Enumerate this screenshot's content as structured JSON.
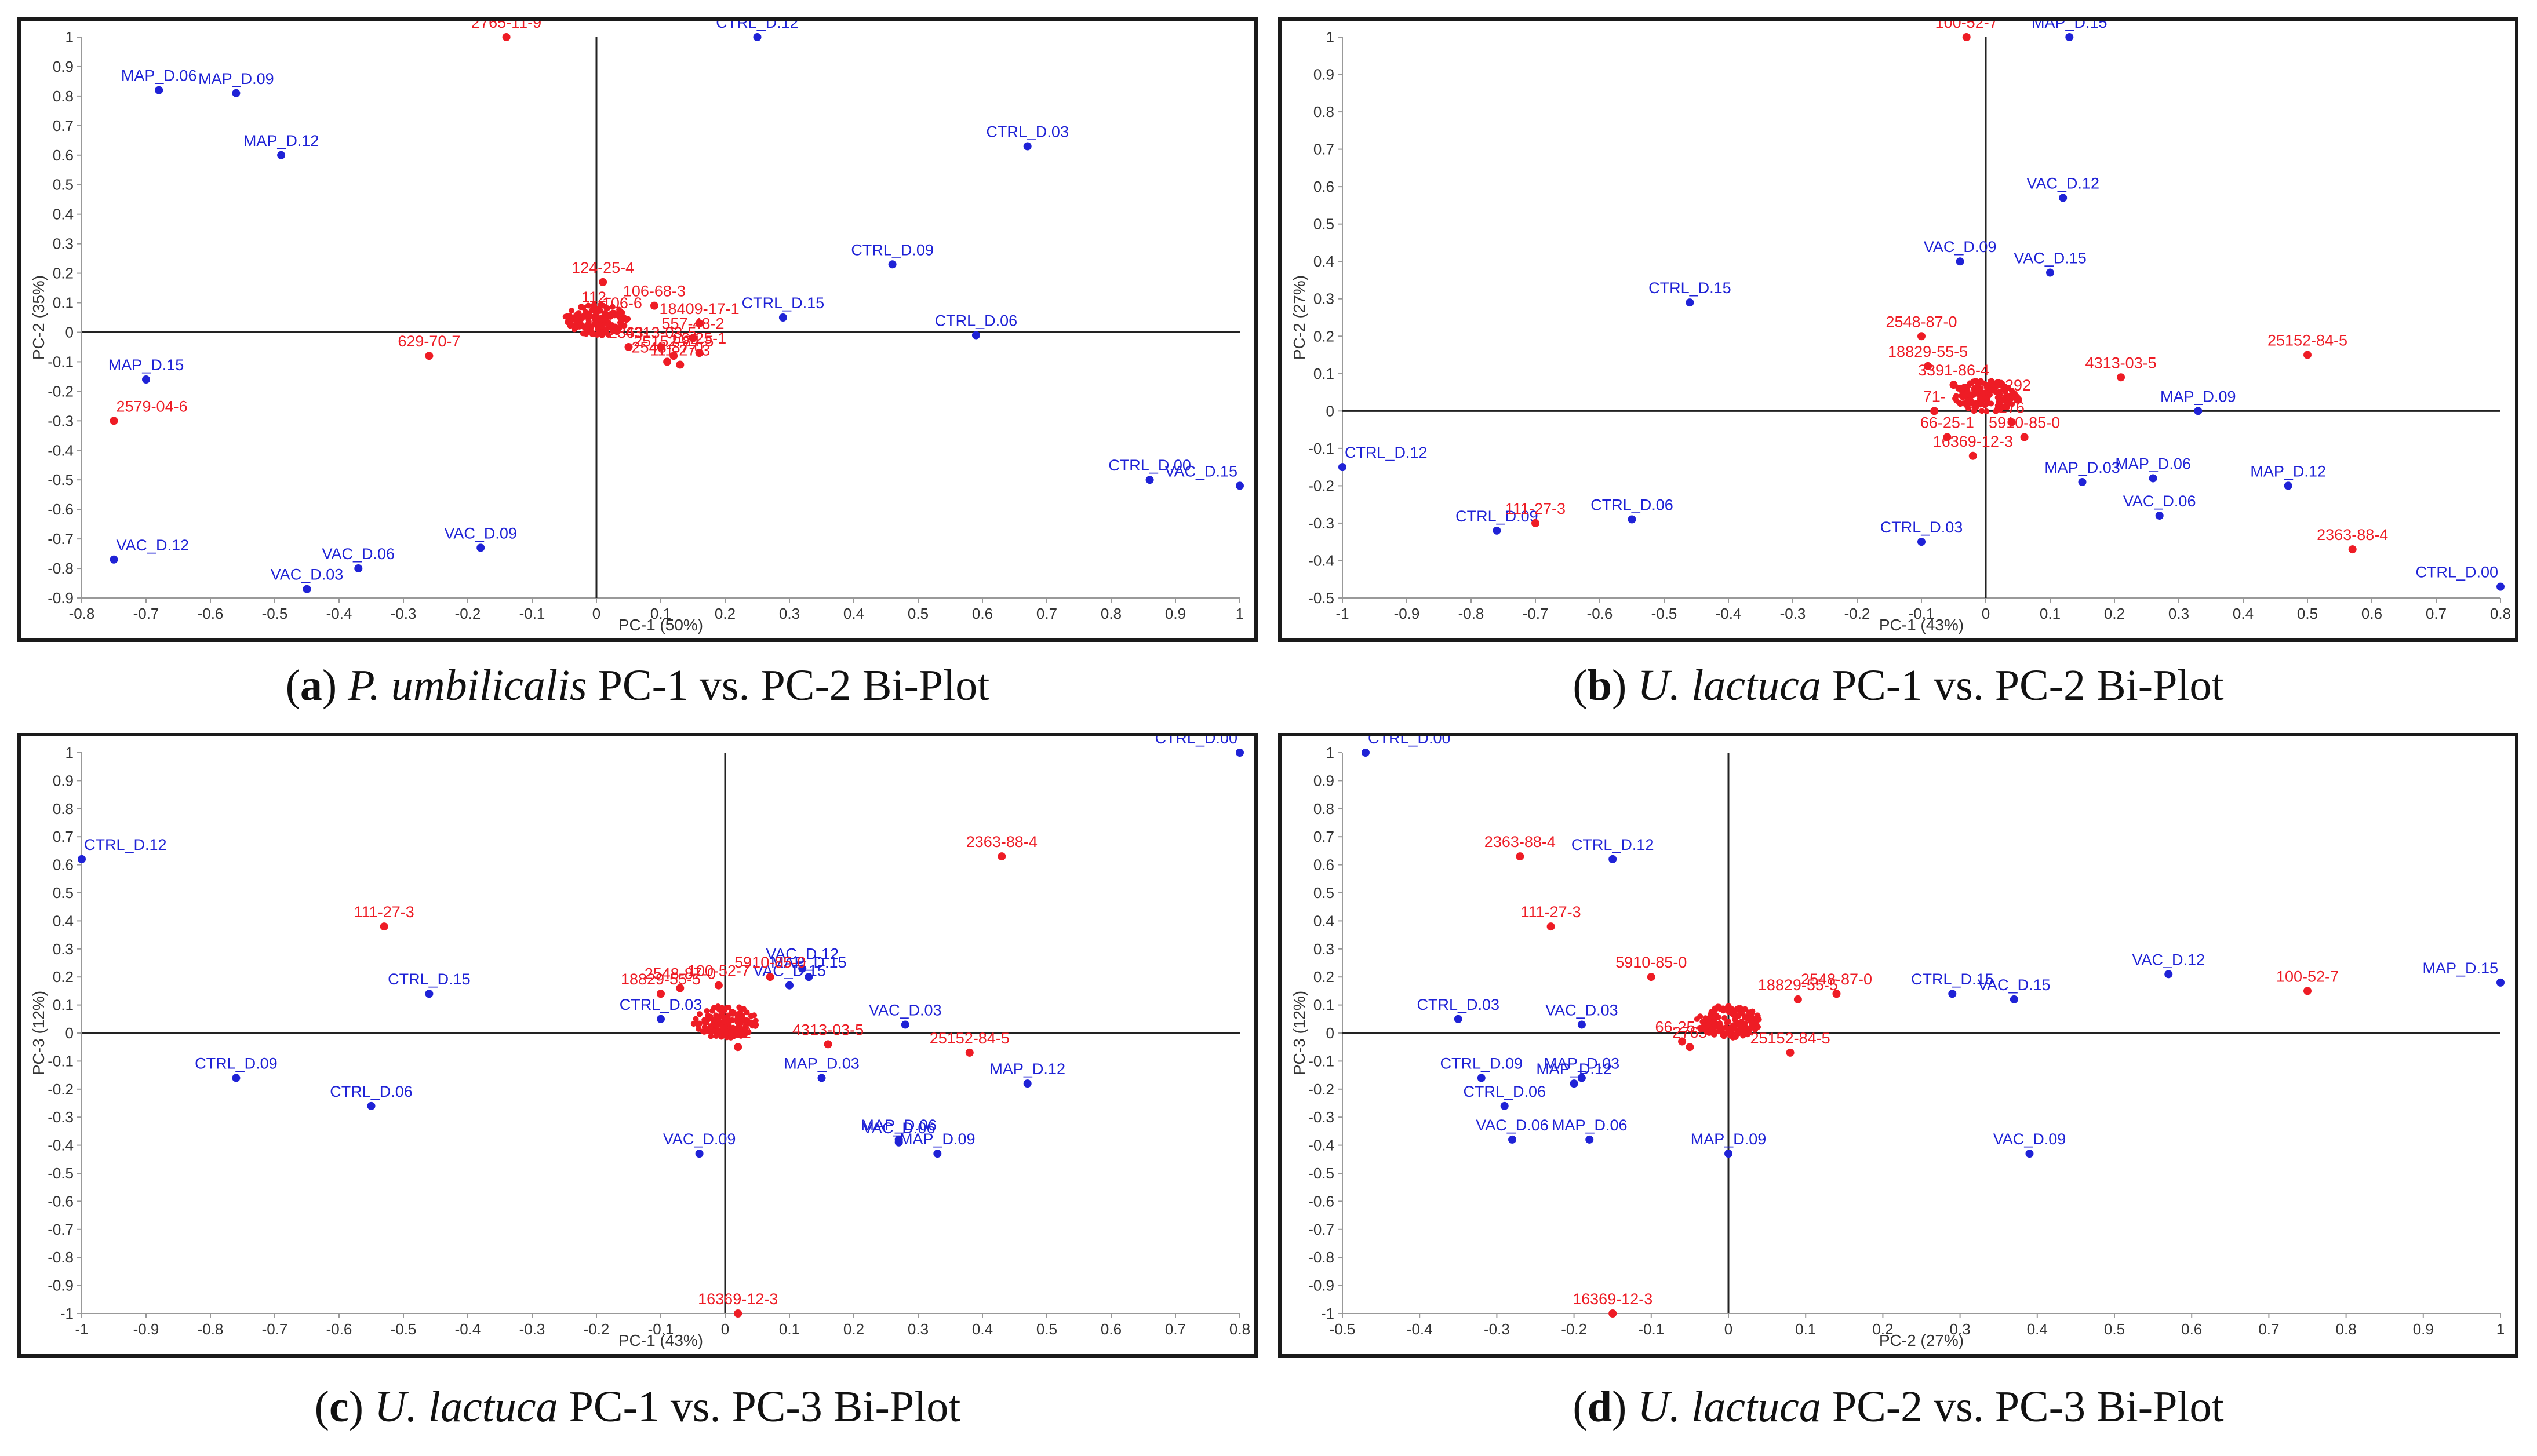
{
  "colors": {
    "observation": "#1f22d6",
    "variable": "#ee1c25",
    "axis": "#222222"
  },
  "chart_data": [
    {
      "type": "scatter",
      "title": "P. umbilicalis PC-1 vs. PC-2 Bi-Plot",
      "caption": {
        "letter": "a",
        "species": "P. umbilicalis",
        "text": "PC-1 vs. PC-2 Bi-Plot"
      },
      "xlabel": "PC-1 (50%)",
      "ylabel": "PC-2 (35%)",
      "xlim": [
        -0.8,
        1.0
      ],
      "ylim": [
        -0.9,
        1.0
      ],
      "xticks": [
        "-0.8",
        "-0.7",
        "-0.6",
        "-0.5",
        "-0.4",
        "-0.3",
        "-0.2",
        "-0.1",
        "0",
        "0.1",
        "0.2",
        "0.3",
        "0.4",
        "0.5",
        "0.6",
        "0.7",
        "0.8",
        "0.9",
        "1"
      ],
      "yticks": [
        "1",
        "0.9",
        "0.8",
        "0.7",
        "0.6",
        "0.5",
        "0.4",
        "0.3",
        "0.2",
        "0.1",
        "0",
        "-0.1",
        "-0.2",
        "-0.3",
        "-0.4",
        "-0.5",
        "-0.6",
        "-0.7",
        "-0.8",
        "-0.9"
      ],
      "series": [
        {
          "name": "samples",
          "color": "#1f22d6",
          "points": [
            {
              "label": "MAP_D.06",
              "x": -0.68,
              "y": 0.82
            },
            {
              "label": "MAP_D.09",
              "x": -0.56,
              "y": 0.81
            },
            {
              "label": "MAP_D.12",
              "x": -0.49,
              "y": 0.6
            },
            {
              "label": "MAP_D.15",
              "x": -0.7,
              "y": -0.16
            },
            {
              "label": "VAC_D.12",
              "x": -0.75,
              "y": -0.77
            },
            {
              "label": "VAC_D.06",
              "x": -0.37,
              "y": -0.8
            },
            {
              "label": "VAC_D.03",
              "x": -0.45,
              "y": -0.87
            },
            {
              "label": "VAC_D.09",
              "x": -0.18,
              "y": -0.73
            },
            {
              "label": "CTRL_D.12",
              "x": 0.25,
              "y": 1.0
            },
            {
              "label": "CTRL_D.03",
              "x": 0.67,
              "y": 0.63
            },
            {
              "label": "CTRL_D.09",
              "x": 0.46,
              "y": 0.23
            },
            {
              "label": "CTRL_D.15",
              "x": 0.29,
              "y": 0.05
            },
            {
              "label": "CTRL_D.06",
              "x": 0.59,
              "y": -0.01
            },
            {
              "label": "CTRL_D.00",
              "x": 0.86,
              "y": -0.5
            },
            {
              "label": "VAC_D.15",
              "x": 1.0,
              "y": -0.52
            }
          ]
        },
        {
          "name": "compounds",
          "color": "#ee1c25",
          "points": [
            {
              "label": "2765-11-9",
              "x": -0.14,
              "y": 1.0
            },
            {
              "label": "124-25-4",
              "x": 0.01,
              "y": 0.17
            },
            {
              "label": "106-68-3",
              "x": 0.09,
              "y": 0.09
            },
            {
              "label": "112-",
              "x": 0.0,
              "y": 0.07
            },
            {
              "label": "18409-17-1",
              "x": 0.16,
              "y": 0.03
            },
            {
              "label": "629-70-7",
              "x": -0.26,
              "y": -0.08
            },
            {
              "label": "2579-04-6",
              "x": -0.75,
              "y": -0.3
            },
            {
              "label": "557-48-2",
              "x": 0.15,
              "y": -0.02
            },
            {
              "label": "2548-87-0",
              "x": 0.11,
              "y": -0.1
            },
            {
              "label": "111-27-3",
              "x": 0.13,
              "y": -0.11
            },
            {
              "label": "66-25-1",
              "x": 0.16,
              "y": -0.07
            },
            {
              "label": "4313-03-5",
              "x": 0.1,
              "y": -0.05
            },
            {
              "label": "25152-84-5",
              "x": 0.12,
              "y": -0.08
            },
            {
              "label": "106-6",
              "x": 0.04,
              "y": 0.05
            },
            {
              "label": "2363-",
              "x": 0.05,
              "y": -0.05
            }
          ]
        }
      ]
    },
    {
      "type": "scatter",
      "title": "U. lactuca PC-1 vs. PC-2 Bi-Plot",
      "caption": {
        "letter": "b",
        "species": "U. lactuca",
        "text": "PC-1 vs. PC-2 Bi-Plot"
      },
      "xlabel": "PC-1 (43%)",
      "ylabel": "PC-2 (27%)",
      "xlim": [
        -1.0,
        0.8
      ],
      "ylim": [
        -0.5,
        1.0
      ],
      "xticks": [
        "-1",
        "-0.9",
        "-0.8",
        "-0.7",
        "-0.6",
        "-0.5",
        "-0.4",
        "-0.3",
        "-0.2",
        "-0.1",
        "0",
        "0.1",
        "0.2",
        "0.3",
        "0.4",
        "0.5",
        "0.6",
        "0.7",
        "0.8"
      ],
      "yticks": [
        "1",
        "0.9",
        "0.8",
        "0.7",
        "0.6",
        "0.5",
        "0.4",
        "0.3",
        "0.2",
        "0.1",
        "0",
        "-0.1",
        "-0.2",
        "-0.3",
        "-0.4",
        "-0.5"
      ],
      "series": [
        {
          "name": "samples",
          "color": "#1f22d6",
          "points": [
            {
              "label": "MAP_D.15",
              "x": 0.13,
              "y": 1.0
            },
            {
              "label": "VAC_D.12",
              "x": 0.12,
              "y": 0.57
            },
            {
              "label": "VAC_D.09",
              "x": -0.04,
              "y": 0.4
            },
            {
              "label": "VAC_D.15",
              "x": 0.1,
              "y": 0.37
            },
            {
              "label": "CTRL_D.15",
              "x": -0.46,
              "y": 0.29
            },
            {
              "label": "MAP_D.09",
              "x": 0.33,
              "y": 0.0
            },
            {
              "label": "CTRL_D.12",
              "x": -1.0,
              "y": -0.15
            },
            {
              "label": "MAP_D.03",
              "x": 0.15,
              "y": -0.19
            },
            {
              "label": "MAP_D.06",
              "x": 0.26,
              "y": -0.18
            },
            {
              "label": "MAP_D.12",
              "x": 0.47,
              "y": -0.2
            },
            {
              "label": "VAC_D.06",
              "x": 0.27,
              "y": -0.28
            },
            {
              "label": "CTRL_D.09",
              "x": -0.76,
              "y": -0.32
            },
            {
              "label": "CTRL_D.06",
              "x": -0.55,
              "y": -0.29
            },
            {
              "label": "CTRL_D.03",
              "x": -0.1,
              "y": -0.35
            },
            {
              "label": "CTRL_D.00",
              "x": 0.8,
              "y": -0.47
            }
          ]
        },
        {
          "name": "compounds",
          "color": "#ee1c25",
          "points": [
            {
              "label": "100-52-7",
              "x": -0.03,
              "y": 1.0
            },
            {
              "label": "2548-87-0",
              "x": -0.1,
              "y": 0.2
            },
            {
              "label": "18829-55-5",
              "x": -0.09,
              "y": 0.12
            },
            {
              "label": "3391-86-4",
              "x": -0.05,
              "y": 0.07
            },
            {
              "label": "4313-03-5",
              "x": 0.21,
              "y": 0.09
            },
            {
              "label": "25152-84-5",
              "x": 0.5,
              "y": 0.15
            },
            {
              "label": "71-",
              "x": -0.08,
              "y": 0.0
            },
            {
              "label": "66-25-1",
              "x": -0.06,
              "y": -0.07
            },
            {
              "label": "5910-85-0",
              "x": 0.06,
              "y": -0.07
            },
            {
              "label": "16369-12-3",
              "x": -0.02,
              "y": -0.12
            },
            {
              "label": "111-27-3",
              "x": -0.7,
              "y": -0.3
            },
            {
              "label": "2363-88-4",
              "x": 0.57,
              "y": -0.37
            },
            {
              "label": "276",
              "x": 0.04,
              "y": -0.03
            },
            {
              "label": "292",
              "x": 0.05,
              "y": 0.03
            }
          ]
        }
      ]
    },
    {
      "type": "scatter",
      "title": "U. lactuca PC-1 vs. PC-3 Bi-Plot",
      "caption": {
        "letter": "c",
        "species": "U. lactuca",
        "text": "PC-1 vs. PC-3 Bi-Plot"
      },
      "xlabel": "PC-1 (43%)",
      "ylabel": "PC-3 (12%)",
      "xlim": [
        -1.0,
        0.8
      ],
      "ylim": [
        -1.0,
        1.0
      ],
      "xticks": [
        "-1",
        "-0.9",
        "-0.8",
        "-0.7",
        "-0.6",
        "-0.5",
        "-0.4",
        "-0.3",
        "-0.2",
        "-0.1",
        "0",
        "0.1",
        "0.2",
        "0.3",
        "0.4",
        "0.5",
        "0.6",
        "0.7",
        "0.8"
      ],
      "yticks": [
        "1",
        "0.9",
        "0.8",
        "0.7",
        "0.6",
        "0.5",
        "0.4",
        "0.3",
        "0.2",
        "0.1",
        "0",
        "-0.1",
        "-0.2",
        "-0.3",
        "-0.4",
        "-0.5",
        "-0.6",
        "-0.7",
        "-0.8",
        "-0.9",
        "-1"
      ],
      "series": [
        {
          "name": "samples",
          "color": "#1f22d6",
          "points": [
            {
              "label": "CTRL_D.00",
              "x": 0.8,
              "y": 1.0
            },
            {
              "label": "CTRL_D.12",
              "x": -1.0,
              "y": 0.62
            },
            {
              "label": "CTRL_D.15",
              "x": -0.46,
              "y": 0.14
            },
            {
              "label": "VAC_D.12",
              "x": 0.12,
              "y": 0.23
            },
            {
              "label": "MAP_D.15",
              "x": 0.13,
              "y": 0.2
            },
            {
              "label": "VAC_D.15",
              "x": 0.1,
              "y": 0.17
            },
            {
              "label": "CTRL_D.03",
              "x": -0.1,
              "y": 0.05
            },
            {
              "label": "VAC_D.03",
              "x": 0.28,
              "y": 0.03
            },
            {
              "label": "CTRL_D.09",
              "x": -0.76,
              "y": -0.16
            },
            {
              "label": "CTRL_D.06",
              "x": -0.55,
              "y": -0.26
            },
            {
              "label": "MAP_D.03",
              "x": 0.15,
              "y": -0.16
            },
            {
              "label": "MAP_D.12",
              "x": 0.47,
              "y": -0.18
            },
            {
              "label": "MAP_D.06",
              "x": 0.27,
              "y": -0.38
            },
            {
              "label": "VAC_D.06",
              "x": 0.27,
              "y": -0.39
            },
            {
              "label": "MAP_D.09",
              "x": 0.33,
              "y": -0.43
            },
            {
              "label": "VAC_D.09",
              "x": -0.04,
              "y": -0.43
            }
          ]
        },
        {
          "name": "compounds",
          "color": "#ee1c25",
          "points": [
            {
              "label": "2363-88-4",
              "x": 0.43,
              "y": 0.63
            },
            {
              "label": "111-27-3",
              "x": -0.53,
              "y": 0.38
            },
            {
              "label": "100-52-7",
              "x": -0.01,
              "y": 0.17
            },
            {
              "label": "5910-85-0",
              "x": 0.07,
              "y": 0.2
            },
            {
              "label": "18829-55-5",
              "x": -0.1,
              "y": 0.14
            },
            {
              "label": "2548-87-0",
              "x": -0.07,
              "y": 0.16
            },
            {
              "label": "4313-03-5",
              "x": 0.16,
              "y": -0.04
            },
            {
              "label": "25152-84-5",
              "x": 0.38,
              "y": -0.07
            },
            {
              "label": "16369-12-3",
              "x": 0.02,
              "y": -1.0
            },
            {
              "label": "292",
              "x": 0.02,
              "y": -0.05
            }
          ]
        }
      ]
    },
    {
      "type": "scatter",
      "title": "U. lactuca PC-2 vs. PC-3 Bi-Plot",
      "caption": {
        "letter": "d",
        "species": "U. lactuca",
        "text": "PC-2 vs. PC-3 Bi-Plot"
      },
      "xlabel": "PC-2 (27%)",
      "ylabel": "PC-3 (12%)",
      "xlim": [
        -0.5,
        1.0
      ],
      "ylim": [
        -1.0,
        1.0
      ],
      "xticks": [
        "-0.5",
        "-0.4",
        "-0.3",
        "-0.2",
        "-0.1",
        "0",
        "0.1",
        "0.2",
        "0.3",
        "0.4",
        "0.5",
        "0.6",
        "0.7",
        "0.8",
        "0.9",
        "1"
      ],
      "yticks": [
        "1",
        "0.9",
        "0.8",
        "0.7",
        "0.6",
        "0.5",
        "0.4",
        "0.3",
        "0.2",
        "0.1",
        "0",
        "-0.1",
        "-0.2",
        "-0.3",
        "-0.4",
        "-0.5",
        "-0.6",
        "-0.7",
        "-0.8",
        "-0.9",
        "-1"
      ],
      "series": [
        {
          "name": "samples",
          "color": "#1f22d6",
          "points": [
            {
              "label": "CTRL_D.00",
              "x": -0.47,
              "y": 1.0
            },
            {
              "label": "CTRL_D.12",
              "x": -0.15,
              "y": 0.62
            },
            {
              "label": "CTRL_D.15",
              "x": 0.29,
              "y": 0.14
            },
            {
              "label": "VAC_D.15",
              "x": 0.37,
              "y": 0.12
            },
            {
              "label": "VAC_D.12",
              "x": 0.57,
              "y": 0.21
            },
            {
              "label": "MAP_D.15",
              "x": 1.0,
              "y": 0.18
            },
            {
              "label": "CTRL_D.03",
              "x": -0.35,
              "y": 0.05
            },
            {
              "label": "VAC_D.03",
              "x": -0.19,
              "y": 0.03
            },
            {
              "label": "CTRL_D.09",
              "x": -0.32,
              "y": -0.16
            },
            {
              "label": "MAP_D.12",
              "x": -0.2,
              "y": -0.18
            },
            {
              "label": "MAP_D.03",
              "x": -0.19,
              "y": -0.16
            },
            {
              "label": "CTRL_D.06",
              "x": -0.29,
              "y": -0.26
            },
            {
              "label": "VAC_D.06",
              "x": -0.28,
              "y": -0.38
            },
            {
              "label": "MAP_D.06",
              "x": -0.18,
              "y": -0.38
            },
            {
              "label": "MAP_D.09",
              "x": 0.0,
              "y": -0.43
            },
            {
              "label": "VAC_D.09",
              "x": 0.39,
              "y": -0.43
            }
          ]
        },
        {
          "name": "compounds",
          "color": "#ee1c25",
          "points": [
            {
              "label": "2363-88-4",
              "x": -0.27,
              "y": 0.63
            },
            {
              "label": "111-27-3",
              "x": -0.23,
              "y": 0.38
            },
            {
              "label": "5910-85-0",
              "x": -0.1,
              "y": 0.2
            },
            {
              "label": "18829-55-5",
              "x": 0.09,
              "y": 0.12
            },
            {
              "label": "2548-87-0",
              "x": 0.14,
              "y": 0.14
            },
            {
              "label": "66-25-1",
              "x": -0.06,
              "y": -0.03
            },
            {
              "label": "25152-84-5",
              "x": 0.08,
              "y": -0.07
            },
            {
              "label": "100-52-7",
              "x": 0.75,
              "y": 0.15
            },
            {
              "label": "2765",
              "x": -0.05,
              "y": -0.05
            },
            {
              "label": "16369-12-3",
              "x": -0.15,
              "y": -1.0
            }
          ]
        }
      ]
    }
  ]
}
